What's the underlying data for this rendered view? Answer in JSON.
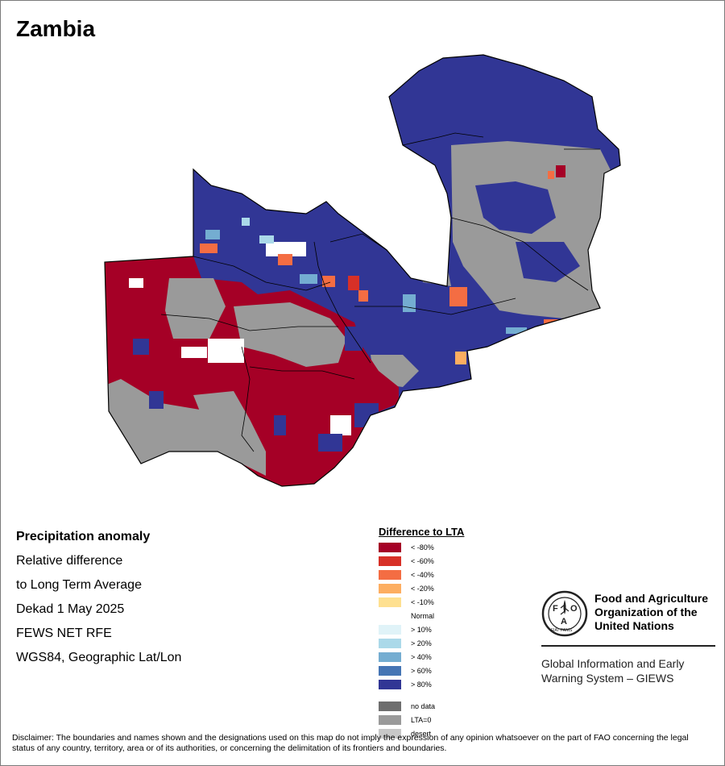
{
  "title": "Zambia",
  "info": {
    "heading": "Precipitation anomaly",
    "lines": [
      "Relative difference",
      "to Long Term Average",
      "Dekad 1 May 2025",
      "FEWS NET RFE",
      "WGS84, Geographic Lat/Lon"
    ]
  },
  "legend": {
    "title": "Difference to LTA",
    "items": [
      {
        "label": "< -80%",
        "color": "#a50026"
      },
      {
        "label": "< -60%",
        "color": "#d73027"
      },
      {
        "label": "< -40%",
        "color": "#f46d43"
      },
      {
        "label": "< -20%",
        "color": "#fdae61"
      },
      {
        "label": "< -10%",
        "color": "#fee090"
      },
      {
        "label": "Normal",
        "color": "#ffffff"
      },
      {
        "label": "> 10%",
        "color": "#e0f3f8"
      },
      {
        "label": "> 20%",
        "color": "#abd9e9"
      },
      {
        "label": "> 40%",
        "color": "#74add1"
      },
      {
        "label": "> 60%",
        "color": "#4575b4"
      },
      {
        "label": "> 80%",
        "color": "#313695"
      }
    ],
    "extra": [
      {
        "label": "no data",
        "color": "#6e6e6e"
      },
      {
        "label": "LTA=0",
        "color": "#9a9a9a"
      },
      {
        "label": "desert",
        "color": "#c8c8c8"
      }
    ]
  },
  "org": {
    "logo_letters": [
      "F",
      "A",
      "O"
    ],
    "logo_motto": "FIAT PANIS",
    "name_lines": [
      "Food and Agriculture",
      "Organization of the",
      "United Nations"
    ],
    "system_lines": [
      "Global Information and Early",
      "Warning System – GIEWS"
    ]
  },
  "disclaimer": "Disclaimer: The boundaries and names shown and the designations used on this map do not imply the expression of any opinion whatsoever on the part of FAO concerning the legal status of any country, territory, area or of its authorities, or concerning the delimitation of its frontiers and boundaries."
}
